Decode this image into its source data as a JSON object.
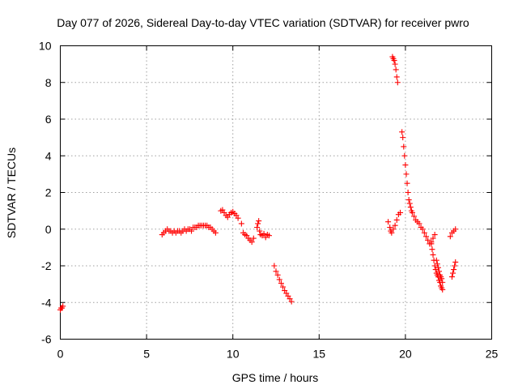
{
  "chart_data": {
    "type": "scatter",
    "title": "Day 077 of 2026, Sidereal Day-to-day VTEC variation (SDTVAR) for receiver pwro",
    "xlabel": "GPS time / hours",
    "ylabel": "SDTVAR / TECUs",
    "xlim": [
      0,
      25
    ],
    "ylim": [
      -6,
      10
    ],
    "xticks": [
      0,
      5,
      10,
      15,
      20,
      25
    ],
    "yticks": [
      -6,
      -4,
      -2,
      0,
      2,
      4,
      6,
      8,
      10
    ],
    "xtick_labels": [
      "0",
      "5",
      "10",
      "15",
      "20",
      "25"
    ],
    "ytick_labels": [
      "-6",
      "-4",
      "-2",
      "0",
      "2",
      "4",
      "6",
      "8",
      "10"
    ],
    "grid": true,
    "marker": "plus",
    "color": "#ff0000",
    "series": [
      {
        "name": "pwro",
        "x": [
          0.0,
          0.05,
          0.1,
          0.15,
          5.9,
          6.0,
          6.1,
          6.2,
          6.3,
          6.4,
          6.5,
          6.6,
          6.7,
          6.8,
          6.9,
          7.0,
          7.1,
          7.2,
          7.3,
          7.4,
          7.5,
          7.6,
          7.7,
          7.8,
          7.9,
          8.0,
          8.1,
          8.2,
          8.3,
          8.4,
          8.5,
          8.6,
          8.7,
          8.8,
          8.9,
          9.0,
          9.3,
          9.4,
          9.5,
          9.6,
          9.7,
          9.8,
          9.9,
          10.0,
          10.1,
          10.2,
          10.3,
          10.5,
          10.6,
          10.7,
          10.8,
          10.9,
          11.0,
          11.1,
          11.2,
          11.4,
          11.45,
          11.5,
          11.55,
          11.6,
          11.7,
          11.8,
          11.9,
          12.0,
          12.1,
          12.4,
          12.5,
          12.6,
          12.7,
          12.8,
          12.9,
          13.0,
          13.1,
          13.2,
          13.3,
          13.4,
          19.0,
          19.1,
          19.15,
          19.2,
          19.3,
          19.4,
          19.5,
          19.6,
          19.7,
          19.25,
          19.3,
          19.35,
          19.4,
          19.45,
          19.5,
          19.55,
          19.8,
          19.85,
          19.9,
          19.95,
          20.0,
          20.05,
          20.1,
          20.15,
          20.2,
          20.25,
          20.3,
          20.35,
          20.4,
          20.5,
          20.6,
          20.7,
          20.8,
          20.9,
          21.0,
          21.1,
          21.2,
          21.3,
          21.4,
          21.5,
          21.6,
          21.7,
          21.5,
          21.55,
          21.6,
          21.65,
          21.7,
          21.75,
          21.8,
          21.85,
          21.9,
          21.95,
          22.0,
          22.05,
          22.1,
          22.15,
          21.8,
          21.85,
          21.9,
          21.95,
          22.0,
          22.05,
          22.1,
          22.15,
          22.6,
          22.7,
          22.8,
          22.9,
          22.7,
          22.75,
          22.8,
          22.85,
          22.9
        ],
        "y": [
          -4.4,
          -4.3,
          -4.3,
          -4.2,
          -0.3,
          -0.2,
          -0.1,
          0.0,
          -0.1,
          -0.1,
          -0.2,
          -0.1,
          -0.2,
          -0.1,
          -0.1,
          -0.2,
          -0.1,
          0.0,
          -0.1,
          0.0,
          0.0,
          -0.1,
          0.1,
          0.1,
          0.1,
          0.2,
          0.2,
          0.2,
          0.2,
          0.2,
          0.2,
          0.1,
          0.1,
          0.0,
          -0.1,
          -0.2,
          1.0,
          1.05,
          0.9,
          0.75,
          0.65,
          0.8,
          0.9,
          0.95,
          0.85,
          0.75,
          0.6,
          0.3,
          -0.2,
          -0.3,
          -0.35,
          -0.5,
          -0.6,
          -0.7,
          -0.5,
          0.1,
          0.3,
          0.45,
          -0.1,
          -0.3,
          -0.35,
          -0.25,
          -0.45,
          -0.3,
          -0.35,
          -2.0,
          -2.3,
          -2.5,
          -2.75,
          -2.95,
          -3.15,
          -3.35,
          -3.5,
          -3.65,
          -3.8,
          -3.95,
          0.4,
          0.1,
          -0.1,
          -0.2,
          0.0,
          0.2,
          0.5,
          0.8,
          0.9,
          9.4,
          9.3,
          9.2,
          9.0,
          8.7,
          8.3,
          8.0,
          5.3,
          5.0,
          4.5,
          4.0,
          3.5,
          3.0,
          2.5,
          2.0,
          1.6,
          1.4,
          1.2,
          1.0,
          0.9,
          0.7,
          0.5,
          0.4,
          0.3,
          0.1,
          0.0,
          -0.2,
          -0.4,
          -0.6,
          -0.8,
          -0.7,
          -0.5,
          -0.3,
          -0.8,
          -1.1,
          -1.4,
          -1.7,
          -2.0,
          -2.2,
          -2.4,
          -2.5,
          -2.6,
          -2.8,
          -2.9,
          -3.1,
          -3.2,
          -3.3,
          -1.7,
          -1.9,
          -2.1,
          -2.3,
          -2.5,
          -2.6,
          -2.7,
          -2.9,
          -0.4,
          -0.2,
          -0.1,
          0.0,
          -2.6,
          -2.4,
          -2.2,
          -2.0,
          -1.8
        ]
      }
    ]
  }
}
